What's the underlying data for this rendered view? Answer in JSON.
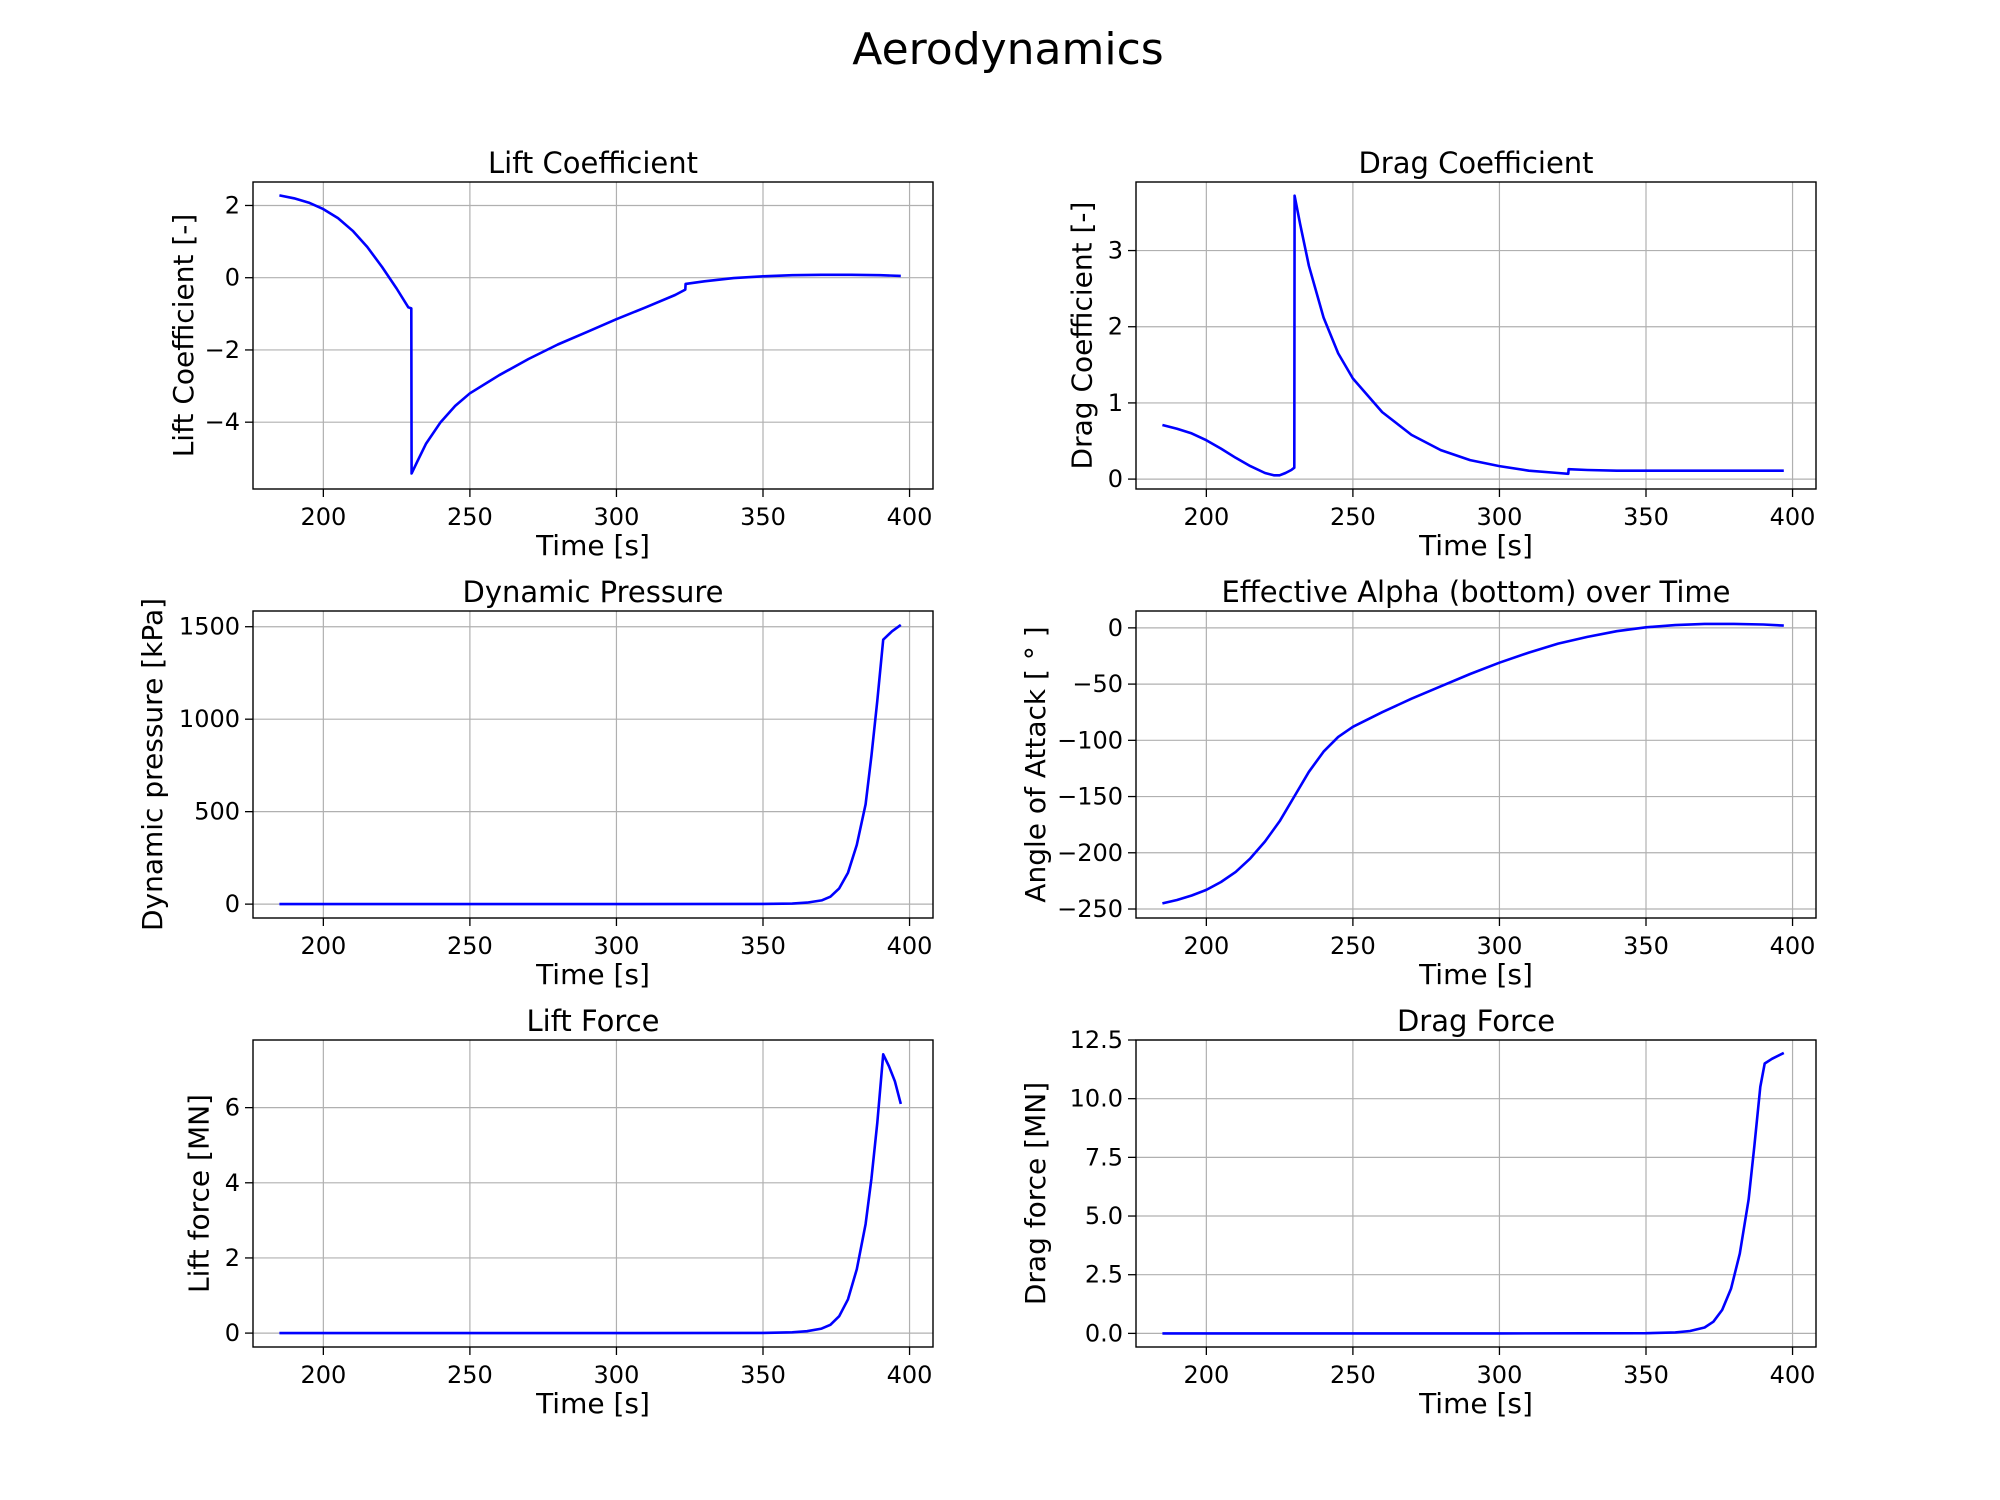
{
  "suptitle": "Aerodynamics",
  "line_color": "#0000ff",
  "grid_color": "#b0b0b0",
  "chart_data": [
    {
      "type": "line",
      "title": "Lift Coefficient",
      "xlabel": "Time [s]",
      "ylabel": "Lift Coefficient [-]",
      "xlim": [
        176,
        408
      ],
      "ylim": [
        -5.85,
        2.65
      ],
      "xticks": [
        200,
        250,
        300,
        350,
        400
      ],
      "xtick_labels": [
        "200",
        "250",
        "300",
        "350",
        "400"
      ],
      "yticks": [
        -4,
        -2,
        0,
        2
      ],
      "ytick_labels": [
        "−4",
        "−2",
        "0",
        "2"
      ],
      "grid": true,
      "series": [
        {
          "x": [
            185,
            190,
            195,
            200,
            205,
            210,
            215,
            220,
            225,
            229,
            230,
            230.1,
            232,
            235,
            240,
            245,
            250,
            260,
            270,
            280,
            290,
            300,
            310,
            320,
            323.5,
            323.6,
            330,
            340,
            350,
            360,
            370,
            380,
            390,
            397
          ],
          "y": [
            2.28,
            2.2,
            2.08,
            1.9,
            1.65,
            1.3,
            0.85,
            0.3,
            -0.3,
            -0.82,
            -0.85,
            -5.42,
            -5.1,
            -4.6,
            -4.0,
            -3.55,
            -3.2,
            -2.7,
            -2.25,
            -1.85,
            -1.5,
            -1.15,
            -0.82,
            -0.48,
            -0.33,
            -0.17,
            -0.1,
            -0.01,
            0.04,
            0.07,
            0.08,
            0.08,
            0.07,
            0.05
          ]
        }
      ]
    },
    {
      "type": "line",
      "title": "Drag Coefficient",
      "xlabel": "Time [s]",
      "ylabel": "Drag Coefficient [-]",
      "xlim": [
        176,
        408
      ],
      "ylim": [
        -0.13,
        3.9
      ],
      "xticks": [
        200,
        250,
        300,
        350,
        400
      ],
      "xtick_labels": [
        "200",
        "250",
        "300",
        "350",
        "400"
      ],
      "yticks": [
        0,
        1,
        2,
        3
      ],
      "ytick_labels": [
        "0",
        "1",
        "2",
        "3"
      ],
      "grid": true,
      "series": [
        {
          "x": [
            185,
            190,
            195,
            200,
            205,
            210,
            215,
            220,
            223,
            225,
            227,
            229,
            230,
            230.1,
            232,
            235,
            240,
            245,
            250,
            260,
            270,
            280,
            290,
            300,
            310,
            320,
            323.5,
            323.6,
            330,
            340,
            350,
            370,
            397
          ],
          "y": [
            0.71,
            0.66,
            0.6,
            0.51,
            0.4,
            0.28,
            0.17,
            0.08,
            0.05,
            0.05,
            0.08,
            0.12,
            0.15,
            3.72,
            3.35,
            2.8,
            2.12,
            1.65,
            1.32,
            0.88,
            0.58,
            0.38,
            0.25,
            0.17,
            0.11,
            0.08,
            0.07,
            0.13,
            0.12,
            0.11,
            0.11,
            0.11,
            0.11
          ]
        }
      ]
    },
    {
      "type": "line",
      "title": "Dynamic Pressure",
      "xlabel": "Time [s]",
      "ylabel": "Dynamic pressure [kPa]",
      "xlim": [
        176,
        408
      ],
      "ylim": [
        -75,
        1585
      ],
      "xticks": [
        200,
        250,
        300,
        350,
        400
      ],
      "xtick_labels": [
        "200",
        "250",
        "300",
        "350",
        "400"
      ],
      "yticks": [
        0,
        500,
        1000,
        1500
      ],
      "ytick_labels": [
        "0",
        "500",
        "1000",
        "1500"
      ],
      "grid": true,
      "series": [
        {
          "x": [
            185,
            250,
            300,
            350,
            360,
            365,
            370,
            373,
            376,
            379,
            382,
            385,
            387,
            389,
            391,
            394,
            397
          ],
          "y": [
            0,
            0,
            0,
            1,
            3,
            8,
            20,
            40,
            85,
            170,
            320,
            540,
            800,
            1100,
            1430,
            1475,
            1510
          ]
        }
      ]
    },
    {
      "type": "line",
      "title": "Effective Alpha (bottom) over Time",
      "xlabel": "Time [s]",
      "ylabel": "Angle of Attack [ ° ]",
      "xlim": [
        176,
        408
      ],
      "ylim": [
        -258,
        15
      ],
      "xticks": [
        200,
        250,
        300,
        350,
        400
      ],
      "xtick_labels": [
        "200",
        "250",
        "300",
        "350",
        "400"
      ],
      "yticks": [
        -250,
        -200,
        -150,
        -100,
        -50,
        0
      ],
      "ytick_labels": [
        "−250",
        "−200",
        "−150",
        "−100",
        "−50",
        "0"
      ],
      "grid": true,
      "series": [
        {
          "x": [
            185,
            190,
            195,
            200,
            205,
            210,
            215,
            220,
            225,
            230,
            235,
            240,
            245,
            250,
            260,
            270,
            280,
            290,
            300,
            310,
            320,
            330,
            340,
            350,
            360,
            370,
            380,
            390,
            397
          ],
          "y": [
            -245,
            -242,
            -238,
            -233,
            -226,
            -217,
            -205,
            -190,
            -172,
            -150,
            -128,
            -110,
            -97,
            -88,
            -75,
            -63,
            -52,
            -41,
            -31,
            -22,
            -14,
            -8,
            -3,
            0.5,
            2.5,
            3.5,
            3.5,
            3,
            2
          ]
        }
      ]
    },
    {
      "type": "line",
      "title": "Lift Force",
      "xlabel": "Time [s]",
      "ylabel": "Lift force [MN]",
      "xlim": [
        176,
        408
      ],
      "ylim": [
        -0.37,
        7.8
      ],
      "xticks": [
        200,
        250,
        300,
        350,
        400
      ],
      "xtick_labels": [
        "200",
        "250",
        "300",
        "350",
        "400"
      ],
      "yticks": [
        0,
        2,
        4,
        6
      ],
      "ytick_labels": [
        "0",
        "2",
        "4",
        "6"
      ],
      "grid": true,
      "series": [
        {
          "x": [
            185,
            250,
            300,
            350,
            360,
            365,
            370,
            373,
            376,
            379,
            382,
            385,
            387,
            389,
            391,
            393,
            395,
            397
          ],
          "y": [
            0,
            0,
            0,
            0.005,
            0.02,
            0.05,
            0.12,
            0.22,
            0.45,
            0.9,
            1.7,
            2.9,
            4.1,
            5.6,
            7.42,
            7.1,
            6.7,
            6.1
          ]
        }
      ]
    },
    {
      "type": "line",
      "title": "Drag Force",
      "xlabel": "Time [s]",
      "ylabel": "Drag force [MN]",
      "xlim": [
        176,
        408
      ],
      "ylim": [
        -0.58,
        12.5
      ],
      "xticks": [
        200,
        250,
        300,
        350,
        400
      ],
      "xtick_labels": [
        "200",
        "250",
        "300",
        "350",
        "400"
      ],
      "yticks": [
        0,
        2.5,
        5,
        7.5,
        10,
        12.5
      ],
      "ytick_labels": [
        "0.0",
        "2.5",
        "5.0",
        "7.5",
        "10.0",
        "12.5"
      ],
      "grid": true,
      "series": [
        {
          "x": [
            185,
            250,
            300,
            350,
            360,
            365,
            370,
            373,
            376,
            379,
            382,
            385,
            387,
            389,
            390.5,
            393,
            397
          ],
          "y": [
            0,
            0,
            0,
            0.01,
            0.04,
            0.1,
            0.25,
            0.5,
            1.0,
            1.9,
            3.4,
            5.7,
            8.0,
            10.5,
            11.5,
            11.7,
            11.95
          ]
        }
      ]
    }
  ]
}
